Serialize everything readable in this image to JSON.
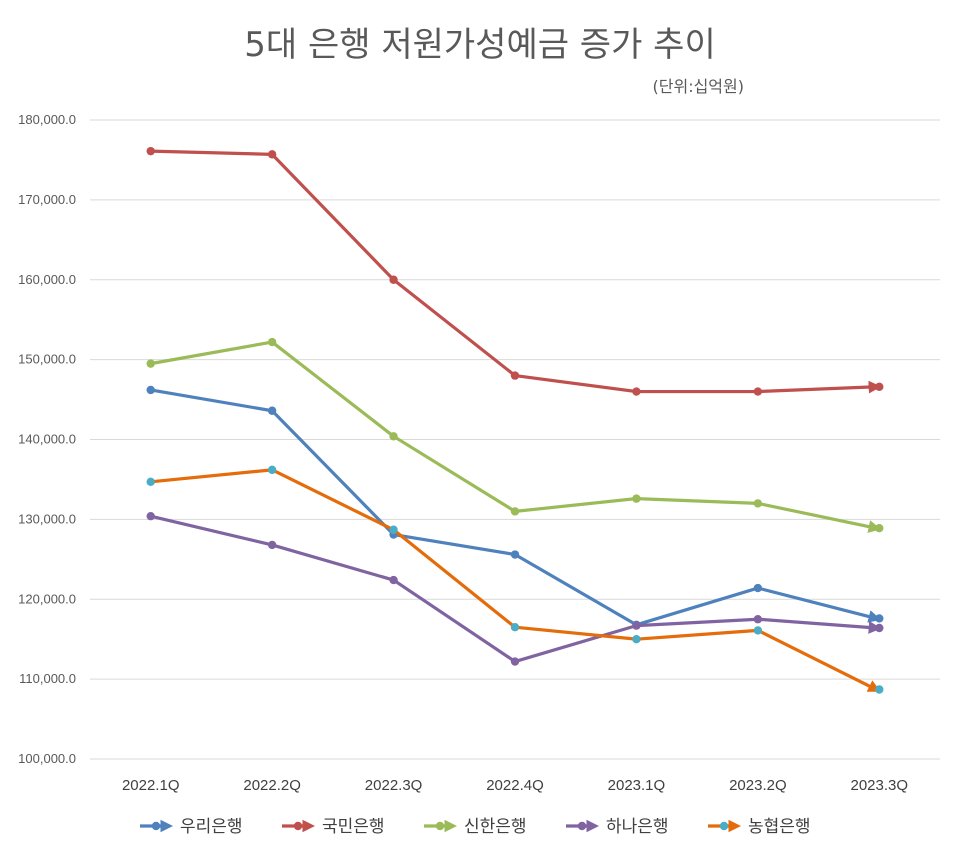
{
  "chart_data": {
    "type": "line",
    "title": "5대 은행 저원가성예금 증가 추이",
    "subtitle": "(단위:십억원)",
    "categories": [
      "2022.1Q",
      "2022.2Q",
      "2022.3Q",
      "2022.4Q",
      "2023.1Q",
      "2023.2Q",
      "2023.3Q"
    ],
    "ylim": [
      100000,
      180000
    ],
    "yticks": [
      {
        "value": 100000,
        "label": "100,000.0"
      },
      {
        "value": 110000,
        "label": "110,000.0"
      },
      {
        "value": 120000,
        "label": "120,000.0"
      },
      {
        "value": 130000,
        "label": "130,000.0"
      },
      {
        "value": 140000,
        "label": "140,000.0"
      },
      {
        "value": 150000,
        "label": "150,000.0"
      },
      {
        "value": 160000,
        "label": "160,000.0"
      },
      {
        "value": 170000,
        "label": "170,000.0"
      },
      {
        "value": 180000,
        "label": "180,000.0"
      }
    ],
    "grid": true,
    "legend_position": "bottom",
    "series": [
      {
        "name": "우리은행",
        "color": "#4f81bd",
        "marker": "#4f81bd",
        "values": [
          146200,
          143600,
          128100,
          125600,
          116800,
          121400,
          117600
        ]
      },
      {
        "name": "국민은행",
        "color": "#c0504d",
        "marker": "#c0504d",
        "values": [
          176100,
          175700,
          160000,
          148000,
          146000,
          146000,
          146600
        ]
      },
      {
        "name": "신한은행",
        "color": "#9bbb59",
        "marker": "#9bbb59",
        "values": [
          149500,
          152200,
          140400,
          131000,
          132600,
          132000,
          128900
        ]
      },
      {
        "name": "하나은행",
        "color": "#8064a2",
        "marker": "#8064a2",
        "values": [
          130400,
          126800,
          122400,
          112200,
          116700,
          117500,
          116400
        ]
      },
      {
        "name": "농협은행",
        "color": "#e46c0a",
        "marker": "#4bacc6",
        "values": [
          134700,
          136200,
          128700,
          116500,
          115000,
          116100,
          108700
        ]
      }
    ]
  }
}
